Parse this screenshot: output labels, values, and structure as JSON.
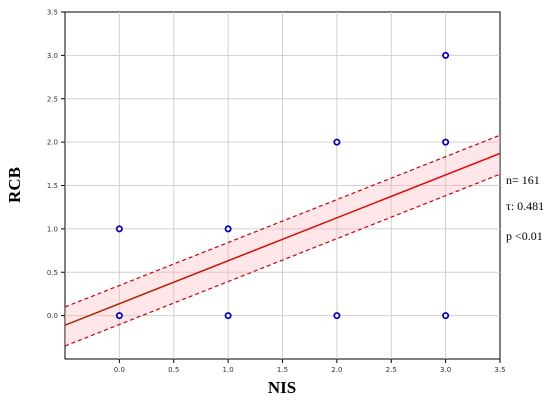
{
  "chart_data": {
    "type": "scatter",
    "xlabel": "NIS",
    "ylabel": "RCB",
    "xlim": [
      -0.5,
      3.5
    ],
    "ylim": [
      -0.5,
      3.5
    ],
    "x_ticks": [
      "0.0",
      "0.5",
      "1.0",
      "1.5",
      "2.0",
      "2.5",
      "3.0",
      "3.5"
    ],
    "y_ticks": [
      "0.0",
      "0.5",
      "1.0",
      "1.5",
      "2.0",
      "2.5",
      "3.0",
      "3.5"
    ],
    "grid": true,
    "points": [
      {
        "x": 0,
        "y": 0
      },
      {
        "x": 0,
        "y": 1
      },
      {
        "x": 1,
        "y": 0
      },
      {
        "x": 1,
        "y": 1
      },
      {
        "x": 2,
        "y": 0
      },
      {
        "x": 2,
        "y": 2
      },
      {
        "x": 3,
        "y": 0
      },
      {
        "x": 3,
        "y": 2
      },
      {
        "x": 3,
        "y": 3
      }
    ],
    "regression": {
      "fit": [
        [
          -0.5,
          -0.11
        ],
        [
          3.5,
          1.87
        ]
      ],
      "upper": [
        [
          -0.5,
          0.1
        ],
        [
          3.5,
          2.08
        ]
      ],
      "lower": [
        [
          -0.5,
          -0.35
        ],
        [
          3.5,
          1.63
        ]
      ]
    },
    "annotations": [
      "n= 161",
      "τ: 0.481",
      "p <0.01"
    ],
    "colors": {
      "points": "#0000cc",
      "fit_line": "#dd0000",
      "fit_line_low": "#993300",
      "confidence": "#cc0000",
      "grid": "#d0d0d0"
    }
  }
}
